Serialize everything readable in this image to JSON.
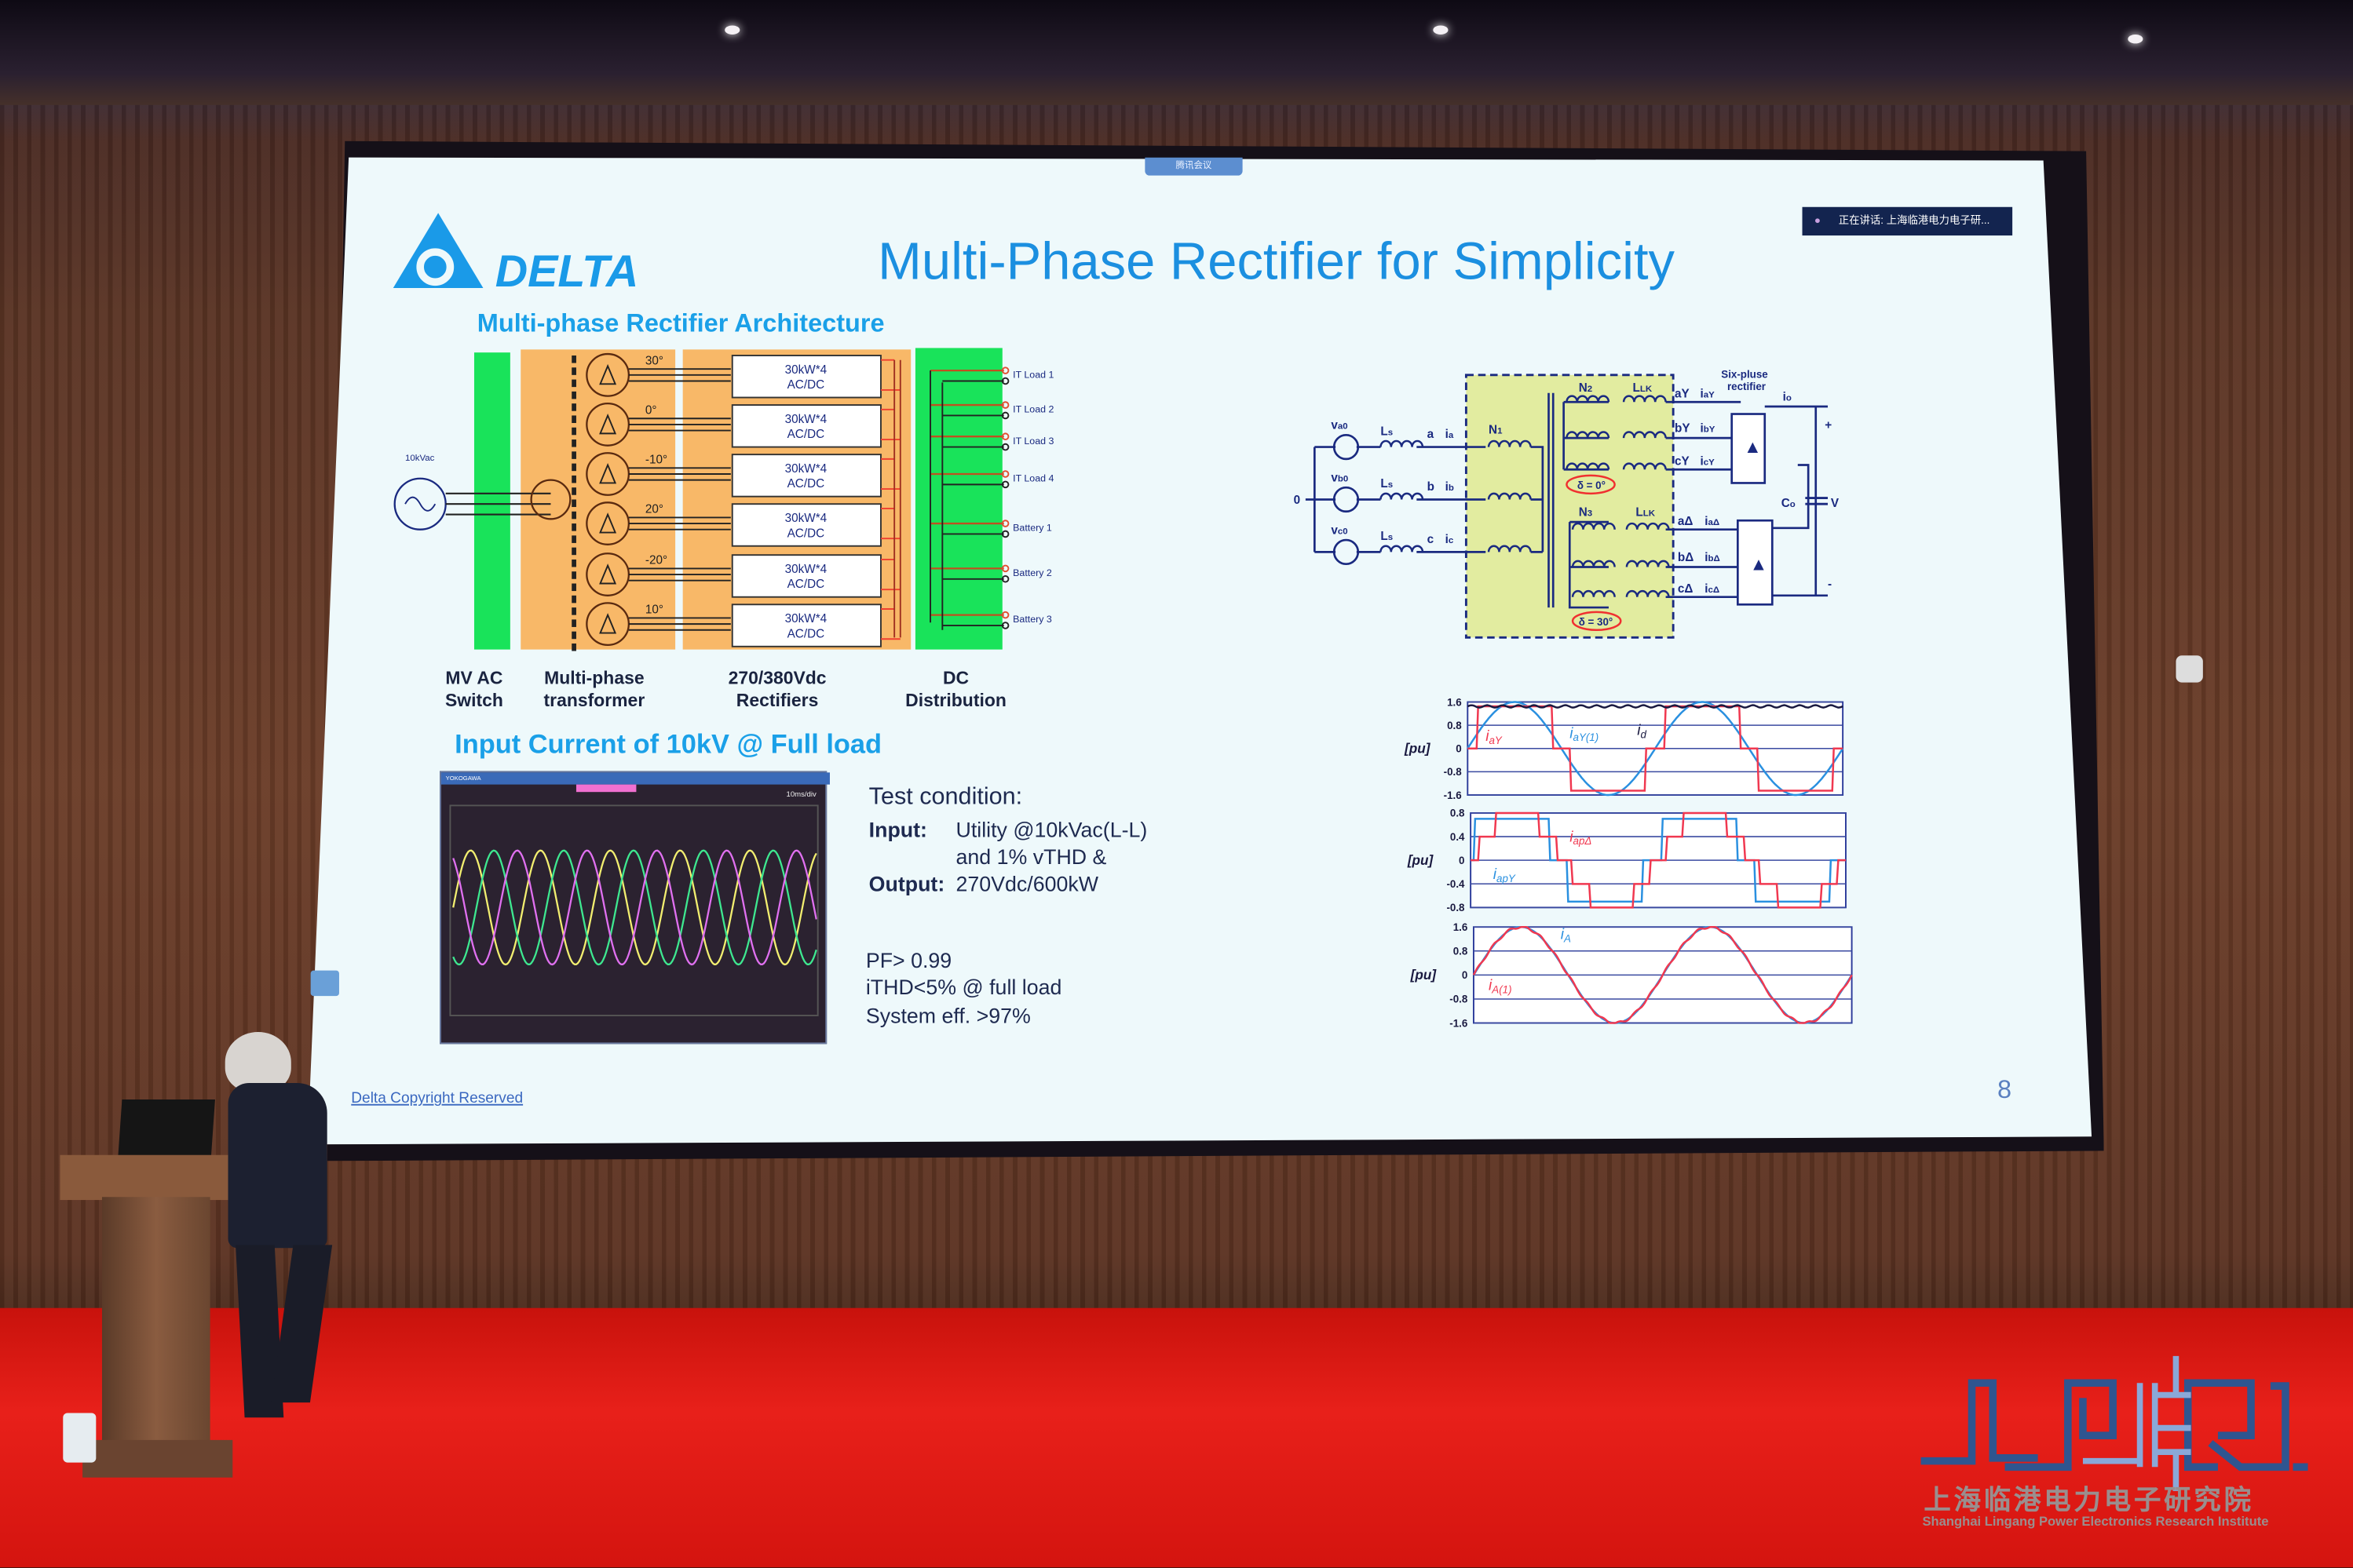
{
  "overlay": {
    "meeting_tab": "腾讯会议",
    "speaking_badge": "正在讲话: 上海临港电力电子研..."
  },
  "slide": {
    "logo_text": "DELTA",
    "title": "Multi-Phase Rectifier for Simplicity",
    "subtitle": "Multi-phase Rectifier Architecture",
    "architecture": {
      "source_label": "10kVac",
      "angles": [
        "30°",
        "0°",
        "-10°",
        "20°",
        "-20°",
        "10°"
      ],
      "rectifier_box": [
        "30kW*4",
        "AC/DC"
      ],
      "outputs": [
        "IT Load 1",
        "IT Load 2",
        "IT Load 3",
        "IT Load 4",
        "Battery 1",
        "Battery 2",
        "Battery 3"
      ],
      "captions": [
        [
          "MV AC",
          "Switch"
        ],
        [
          "Multi-phase",
          "transformer"
        ],
        [
          "270/380Vdc",
          "Rectifiers"
        ],
        [
          "DC",
          "Distribution"
        ]
      ],
      "colors": {
        "green": "#19e35a",
        "orange": "#f8b868"
      }
    },
    "input_title": "Input Current of 10kV @ Full load",
    "test": {
      "heading": "Test condition:",
      "input_label": "Input:",
      "input_line1": "Utility @10kVac(L-L)",
      "input_line2": "and 1% vTHD &",
      "output_label": "Output:",
      "output_value": "270Vdc/600kW",
      "pf": "PF> 0.99",
      "ithd": "iTHD<5% @ full load",
      "eff": "System eff. >97%"
    },
    "scope": {
      "brand": "YOKOGAWA",
      "timebase": "10ms/div",
      "trace_colors": [
        "#f2ee70",
        "#3ee890",
        "#e070f0"
      ]
    },
    "circuit": {
      "sources": [
        {
          "v": "v",
          "s": "a0"
        },
        {
          "v": "v",
          "s": "b0"
        },
        {
          "v": "v",
          "s": "c0"
        }
      ],
      "ls": "L",
      "ls_sub": "s",
      "nodes": [
        "a",
        "b",
        "c"
      ],
      "currents": [
        "a",
        "b",
        "c"
      ],
      "neutral": "0",
      "n1": "1",
      "n2": "2",
      "n3": "3",
      "n_main": "N",
      "llk": "L",
      "llk_sub": "LK",
      "delta0": "δ = 0°",
      "delta30": "δ = 30°",
      "rect_label": [
        "Six-pluse",
        "rectifier"
      ],
      "out_y": [
        "aY",
        "bY",
        "cY"
      ],
      "out_d": [
        "aΔ",
        "bΔ",
        "cΔ"
      ],
      "io": "o",
      "co": "C",
      "co_sub": "o",
      "v": "V",
      "plus": "+",
      "minus": "-"
    },
    "waveforms": [
      {
        "ylabel": "[pu]",
        "ticks": [
          "1.6",
          "0.8",
          "0",
          "-0.8",
          "-1.6"
        ],
        "ylim": [
          -1.6,
          1.6
        ],
        "labels": [
          {
            "main": "i",
            "sub": "aY",
            "color": "#f03850"
          },
          {
            "main": "i",
            "sub": "aY(1)",
            "color": "#2a90e0"
          },
          {
            "main": "i",
            "sub": "d",
            "color": "#1a1a40"
          }
        ]
      },
      {
        "ylabel": "[pu]",
        "ticks": [
          "0.8",
          "0.4",
          "0",
          "-0.4",
          "-0.8"
        ],
        "ylim": [
          -0.8,
          0.8
        ],
        "labels": [
          {
            "main": "i",
            "sub": "apΔ",
            "color": "#f03850"
          },
          {
            "main": "i",
            "sub": "apY",
            "color": "#2a90e0"
          }
        ]
      },
      {
        "ylabel": "[pu]",
        "ticks": [
          "1.6",
          "0.8",
          "0",
          "-0.8",
          "-1.6"
        ],
        "ylim": [
          -1.6,
          1.6
        ],
        "labels": [
          {
            "main": "i",
            "sub": "A",
            "color": "#2a90e0"
          },
          {
            "main": "i",
            "sub": "A(1)",
            "color": "#f03850"
          }
        ]
      }
    ],
    "copyright": "Delta Copyright Reserved",
    "page_number": "8"
  },
  "venue": {
    "logo_text": "LPERI",
    "institute_cn": "上海临港电力电子研究院",
    "institute_en": "Shanghai Lingang Power Electronics Research Institute"
  }
}
